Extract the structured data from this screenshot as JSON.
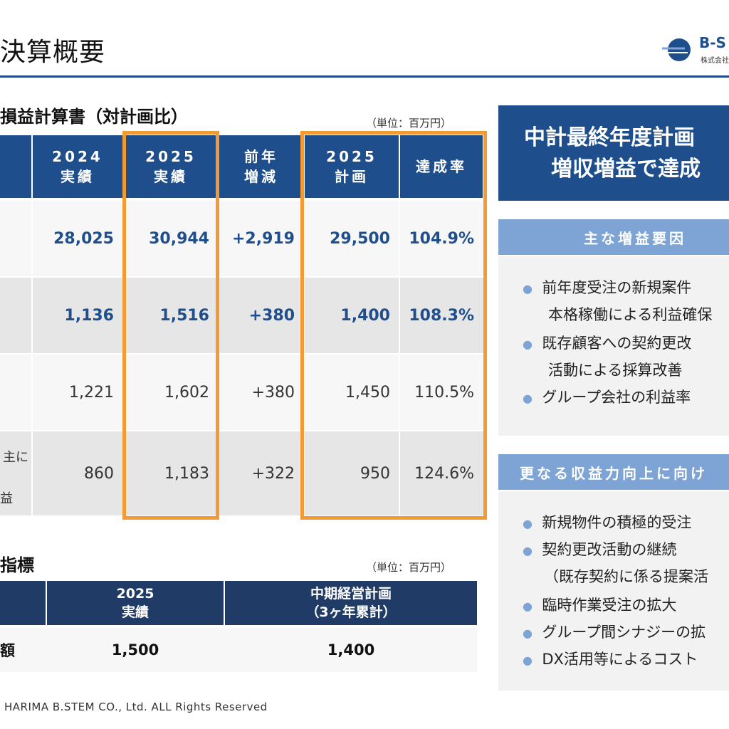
{
  "header": {
    "title": "決算概要",
    "logo_text": "B-S",
    "logo_sub": "株式会社"
  },
  "pl": {
    "section_title": "損益計算書（対計画比）",
    "unit": "（単位：百万円）",
    "columns": [
      {
        "line1": "2024",
        "line2": "実績"
      },
      {
        "line1": "2025",
        "line2": "実績"
      },
      {
        "line1": "前年",
        "line2": "増減"
      },
      {
        "line1": "2025",
        "line2": "計画"
      },
      {
        "line1": "達成率",
        "line2": ""
      }
    ],
    "row_label_fragments": [
      "主に",
      "益"
    ],
    "rows": [
      {
        "values": [
          "28,025",
          "30,944",
          "+2,919",
          "29,500",
          "104.9%"
        ],
        "style": "bold"
      },
      {
        "values": [
          "1,136",
          "1,516",
          "+380",
          "1,400",
          "108.3%"
        ],
        "style": "bold"
      },
      {
        "values": [
          "1,221",
          "1,602",
          "+380",
          "1,450",
          "110.5%"
        ],
        "style": "plain"
      },
      {
        "values": [
          "860",
          "1,183",
          "+322",
          "950",
          "124.6%"
        ],
        "style": "plain"
      }
    ]
  },
  "kpi": {
    "section_title": "指標",
    "unit": "（単位：百万円）",
    "columns": [
      {
        "line1": "2025",
        "line2": "実績"
      },
      {
        "line1": "中期経営計画",
        "line2": "（3ヶ年累計）"
      }
    ],
    "row_label": "額",
    "values": [
      "1,500",
      "1,400"
    ]
  },
  "copyright": "HARIMA B.STEM CO., Ltd. ALL Rights Reserved",
  "panel": {
    "head_line1": "中計最終年度計画",
    "head_line2": "増収増益で達成",
    "sub1": "主な増益要因",
    "sub1_items": [
      "前年度受注の新規案件",
      "本格稼働による利益確保",
      "既存顧客への契約更改",
      "活動による採算改善",
      "グループ会社の利益率"
    ],
    "sub2": "更なる収益力向上に向け",
    "sub2_items": [
      "新規物件の積極的受注",
      "契約更改活動の継続",
      "（既存契約に係る提案活",
      "臨時作業受注の拡大",
      "グループ間シナジーの拡",
      "DX活用等によるコスト"
    ],
    "bullet": "●"
  }
}
